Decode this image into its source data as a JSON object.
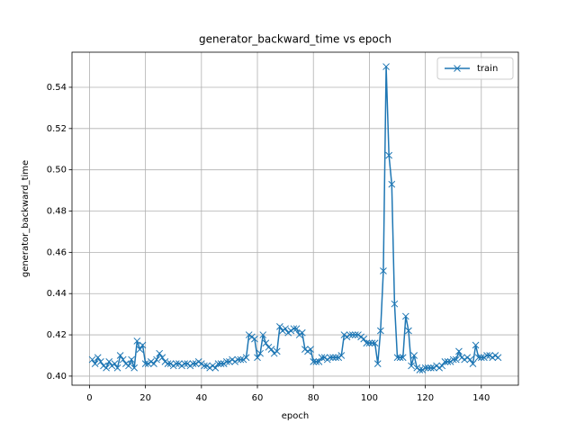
{
  "chart_data": {
    "type": "line",
    "title": "generator_backward_time vs epoch",
    "x_label": "epoch",
    "y_label": "generator_backward_time",
    "x": [
      1,
      2,
      3,
      4,
      5,
      6,
      7,
      8,
      9,
      10,
      11,
      12,
      13,
      14,
      15,
      16,
      17,
      18,
      19,
      20,
      21,
      22,
      23,
      24,
      25,
      26,
      27,
      28,
      29,
      30,
      31,
      32,
      33,
      34,
      35,
      36,
      37,
      38,
      39,
      40,
      41,
      42,
      43,
      44,
      45,
      46,
      47,
      48,
      49,
      50,
      51,
      52,
      53,
      54,
      55,
      56,
      57,
      58,
      59,
      60,
      61,
      62,
      63,
      64,
      65,
      66,
      67,
      68,
      69,
      70,
      71,
      72,
      73,
      74,
      75,
      76,
      77,
      78,
      79,
      80,
      81,
      82,
      83,
      84,
      85,
      86,
      87,
      88,
      89,
      90,
      91,
      92,
      93,
      94,
      95,
      96,
      97,
      98,
      99,
      100,
      101,
      102,
      103,
      104,
      105,
      106,
      107,
      108,
      109,
      110,
      111,
      112,
      113,
      114,
      115,
      116,
      117,
      118,
      119,
      120,
      121,
      122,
      123,
      124,
      125,
      126,
      127,
      128,
      129,
      130,
      131,
      132,
      133,
      134,
      135,
      136,
      137,
      138,
      139,
      140,
      141,
      142,
      143,
      144,
      145,
      146
    ],
    "series": [
      {
        "name": "train",
        "color": "#1f77b4",
        "marker": "x",
        "values": [
          0.408,
          0.406,
          0.409,
          0.407,
          0.405,
          0.404,
          0.407,
          0.405,
          0.406,
          0.404,
          0.41,
          0.408,
          0.406,
          0.405,
          0.408,
          0.404,
          0.417,
          0.413,
          0.415,
          0.406,
          0.406,
          0.407,
          0.406,
          0.408,
          0.411,
          0.409,
          0.407,
          0.406,
          0.406,
          0.405,
          0.406,
          0.406,
          0.405,
          0.406,
          0.406,
          0.405,
          0.406,
          0.406,
          0.407,
          0.406,
          0.405,
          0.405,
          0.404,
          0.405,
          0.404,
          0.406,
          0.406,
          0.406,
          0.407,
          0.407,
          0.408,
          0.407,
          0.408,
          0.408,
          0.408,
          0.409,
          0.42,
          0.419,
          0.418,
          0.409,
          0.411,
          0.42,
          0.416,
          0.414,
          0.413,
          0.411,
          0.412,
          0.424,
          0.422,
          0.423,
          0.421,
          0.422,
          0.423,
          0.423,
          0.42,
          0.421,
          0.413,
          0.412,
          0.413,
          0.407,
          0.407,
          0.407,
          0.409,
          0.409,
          0.408,
          0.409,
          0.409,
          0.409,
          0.409,
          0.41,
          0.42,
          0.419,
          0.42,
          0.42,
          0.42,
          0.42,
          0.419,
          0.418,
          0.416,
          0.416,
          0.416,
          0.416,
          0.406,
          0.422,
          0.451,
          0.55,
          0.507,
          0.493,
          0.435,
          0.409,
          0.409,
          0.409,
          0.429,
          0.422,
          0.405,
          0.41,
          0.404,
          0.403,
          0.403,
          0.404,
          0.404,
          0.404,
          0.404,
          0.405,
          0.404,
          0.405,
          0.407,
          0.407,
          0.407,
          0.408,
          0.408,
          0.412,
          0.409,
          0.408,
          0.409,
          0.408,
          0.406,
          0.415,
          0.409,
          0.409,
          0.409,
          0.41,
          0.41,
          0.409,
          0.41,
          0.409
        ]
      }
    ],
    "xlim": [
      -6.25,
      153.25
    ],
    "ylim": [
      0.3956,
      0.557
    ],
    "xticks": [
      0,
      20,
      40,
      60,
      80,
      100,
      120,
      140
    ],
    "yticks": [
      {
        "value": 0.4,
        "label": "0.40"
      },
      0.42,
      0.44,
      0.46,
      0.48,
      {
        "value": 0.5,
        "label": "0.50"
      },
      0.52,
      0.54
    ],
    "grid": true,
    "legend": "upper right"
  }
}
